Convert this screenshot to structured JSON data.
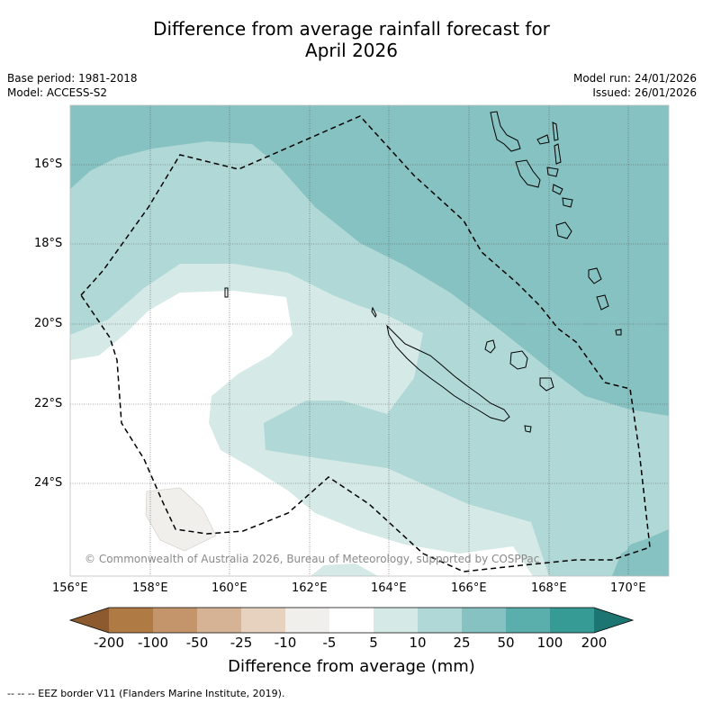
{
  "title_line1": "Difference from average rainfall forecast for",
  "title_line2": "April 2026",
  "base_period": "Base period: 1981-2018",
  "model": "Model: ACCESS-S2",
  "model_run": "Model run: 24/01/2026",
  "issued": "Issued: 26/01/2026",
  "lat_labels": [
    "16°S",
    "18°S",
    "20°S",
    "22°S",
    "24°S"
  ],
  "lon_labels": [
    "156°E",
    "158°E",
    "160°E",
    "162°E",
    "164°E",
    "166°E",
    "168°E",
    "170°E"
  ],
  "copyright": "© Commonwealth of Australia 2026, Bureau of Meteorology, supported by COSPPac",
  "colorbar": {
    "ticks": [
      "-200",
      "-100",
      "-50",
      "-25",
      "-10",
      "-5",
      "5",
      "10",
      "25",
      "50",
      "100",
      "200"
    ],
    "colors": {
      "lt_-200": "#8c5a2e",
      "-200_-100": "#b07a45",
      "-100_-50": "#c4956a",
      "-50_-25": "#d5b394",
      "-25_-10": "#e6d2bf",
      "-10_-5": "#f1efeb",
      "-5_5": "#ffffff",
      "5_10": "#d5e9e7",
      "10_25": "#b0d8d7",
      "25_50": "#86c2c1",
      "50_100": "#5aaeab",
      "100_200": "#369a95",
      "gt_200": "#1c7570"
    }
  },
  "colorbar_title": "Difference from average (mm)",
  "footer": "-- -- -- EEZ border V11 (Flanders Marine Institute, 2019)."
}
